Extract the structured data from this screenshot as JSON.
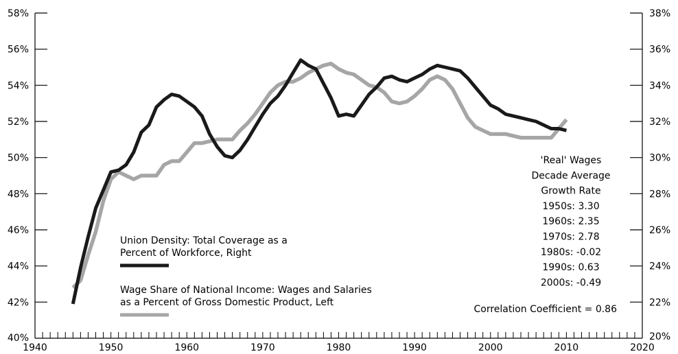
{
  "chart_data": {
    "type": "line",
    "title": "",
    "xlim": [
      1940,
      2020
    ],
    "x_ticks": [
      "1940",
      "1950",
      "1960",
      "1970",
      "1980",
      "1990",
      "2000",
      "2010",
      "2020"
    ],
    "y_left": {
      "lim": [
        40,
        58
      ],
      "tick_labels": [
        "40%",
        "42%",
        "44%",
        "46%",
        "48%",
        "50%",
        "52%",
        "54%",
        "56%",
        "58%"
      ]
    },
    "y_right": {
      "lim": [
        20,
        38
      ],
      "tick_labels": [
        "20%",
        "22%",
        "24%",
        "26%",
        "28%",
        "30%",
        "32%",
        "34%",
        "36%",
        "38%"
      ]
    },
    "series": [
      {
        "name": "Union Density: Total Coverage as a Percent of Workforce, Right",
        "axis": "right",
        "color": "#1a1a1a",
        "x": [
          1945,
          1946,
          1947,
          1948,
          1949,
          1950,
          1951,
          1952,
          1953,
          1954,
          1955,
          1956,
          1957,
          1958,
          1959,
          1960,
          1961,
          1962,
          1963,
          1964,
          1965,
          1966,
          1967,
          1968,
          1969,
          1970,
          1971,
          1972,
          1973,
          1974,
          1975,
          1976,
          1977,
          1978,
          1979,
          1980,
          1981,
          1982,
          1983,
          1984,
          1985,
          1986,
          1987,
          1988,
          1989,
          1990,
          1991,
          1992,
          1993,
          1994,
          1995,
          1996,
          1997,
          1998,
          1999,
          2000,
          2001,
          2002,
          2003,
          2004,
          2005,
          2006,
          2007,
          2008,
          2009,
          2010
        ],
        "y": [
          21.9,
          23.9,
          25.6,
          27.2,
          28.2,
          29.2,
          29.3,
          29.6,
          30.3,
          31.4,
          31.8,
          32.8,
          33.2,
          33.5,
          33.4,
          33.1,
          32.8,
          32.3,
          31.3,
          30.6,
          30.1,
          30.0,
          30.4,
          31.0,
          31.7,
          32.4,
          33.0,
          33.4,
          34.0,
          34.7,
          35.4,
          35.1,
          34.9,
          34.1,
          33.3,
          32.3,
          32.4,
          32.3,
          32.9,
          33.5,
          33.9,
          34.4,
          34.5,
          34.3,
          34.2,
          34.4,
          34.6,
          34.9,
          35.1,
          35.0,
          34.9,
          34.8,
          34.4,
          33.9,
          33.4,
          32.9,
          32.7,
          32.4,
          32.3,
          32.2,
          32.1,
          32.0,
          31.8,
          31.6,
          31.6,
          31.5
        ]
      },
      {
        "name": "Wage Share of National Income: Wages and Salaries as a Percent of Gross Domestic Product, Left",
        "axis": "left",
        "color": "#a6a6a6",
        "x": [
          1945,
          1946,
          1947,
          1948,
          1949,
          1950,
          1951,
          1952,
          1953,
          1954,
          1955,
          1956,
          1957,
          1958,
          1959,
          1960,
          1961,
          1962,
          1963,
          1964,
          1965,
          1966,
          1967,
          1968,
          1969,
          1970,
          1971,
          1972,
          1973,
          1974,
          1975,
          1976,
          1977,
          1978,
          1979,
          1980,
          1981,
          1982,
          1983,
          1984,
          1985,
          1986,
          1987,
          1988,
          1989,
          1990,
          1991,
          1992,
          1993,
          1994,
          1995,
          1996,
          1997,
          1998,
          1999,
          2000,
          2001,
          2002,
          2003,
          2004,
          2005,
          2006,
          2007,
          2008,
          2009,
          2010
        ],
        "y": [
          42.8,
          43.2,
          44.6,
          45.9,
          47.6,
          48.8,
          49.2,
          49.0,
          48.8,
          49.0,
          49.0,
          49.0,
          49.6,
          49.8,
          49.8,
          50.3,
          50.8,
          50.8,
          50.9,
          51.0,
          51.0,
          51.0,
          51.5,
          51.9,
          52.4,
          53.0,
          53.6,
          54.0,
          54.2,
          54.2,
          54.4,
          54.7,
          54.9,
          55.1,
          55.2,
          54.9,
          54.7,
          54.6,
          54.3,
          54.0,
          53.9,
          53.6,
          53.1,
          53.0,
          53.1,
          53.4,
          53.8,
          54.3,
          54.5,
          54.3,
          53.8,
          53.0,
          52.2,
          51.7,
          51.5,
          51.3,
          51.3,
          51.3,
          51.2,
          51.1,
          51.1,
          51.1,
          51.1,
          51.1,
          51.6,
          52.1
        ]
      }
    ],
    "text_box": {
      "lines": [
        "'Real' Wages",
        "Decade Average",
        "Growth Rate",
        "1950s:  3.30",
        "1960s:  2.35",
        "1970s:  2.78",
        "1980s: -0.02",
        "1990s:  0.63",
        "2000s: -0.49"
      ]
    },
    "correlation": "Correlation Coefficient = 0.86",
    "legend": [
      {
        "lines": [
          "Union Density: Total Coverage as a",
          "Percent of Workforce, Right"
        ],
        "color": "#1a1a1a"
      },
      {
        "lines": [
          "Wage Share of National Income: Wages and Salaries",
          "as a Percent of Gross Domestic Product, Left"
        ],
        "color": "#a6a6a6"
      }
    ]
  }
}
